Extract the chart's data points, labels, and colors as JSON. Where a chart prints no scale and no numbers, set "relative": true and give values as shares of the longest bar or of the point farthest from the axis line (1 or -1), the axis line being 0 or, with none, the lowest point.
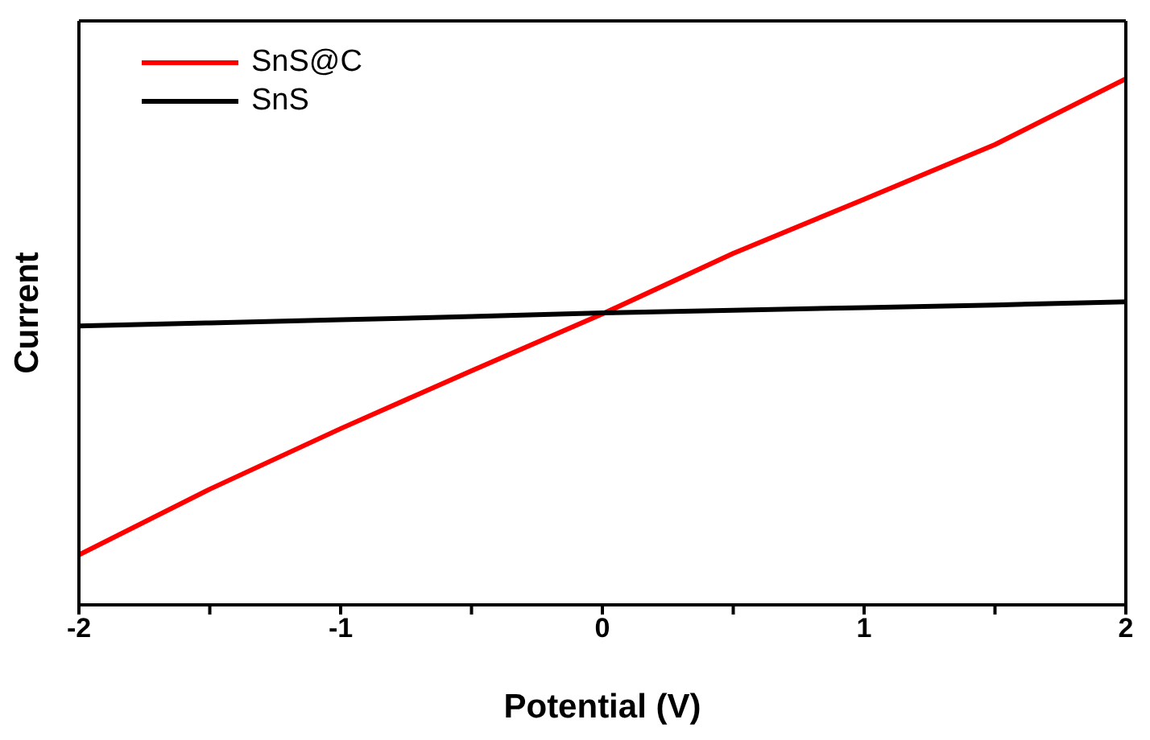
{
  "chart_data": {
    "type": "line",
    "xlabel": "Potential (V)",
    "ylabel": "Current",
    "relative": true,
    "xlim": [
      -2,
      2
    ],
    "xticks": [
      -2,
      {
        "value": -1.5,
        "label": null
      },
      -1,
      {
        "value": -0.5,
        "label": null
      },
      0,
      {
        "value": 0.5,
        "label": null
      },
      1,
      {
        "value": 1.5,
        "label": null
      },
      2
    ],
    "x": [
      -2,
      -1.5,
      -1,
      -0.5,
      0,
      0.5,
      1,
      1.5,
      2
    ],
    "series": [
      {
        "name": "SnS@C",
        "color": "#ff0000",
        "values": [
          0.095,
          0.22,
          0.335,
          0.445,
          0.553,
          0.668,
          0.771,
          0.875,
          1
        ]
      },
      {
        "name": "SnS",
        "color": "#000000",
        "values": [
          0.53,
          0.536,
          0.542,
          0.548,
          0.555,
          0.56,
          0.565,
          0.57,
          0.576
        ]
      }
    ],
    "legend": "top left",
    "marker": "none",
    "line_style": "solid",
    "grid": false
  }
}
